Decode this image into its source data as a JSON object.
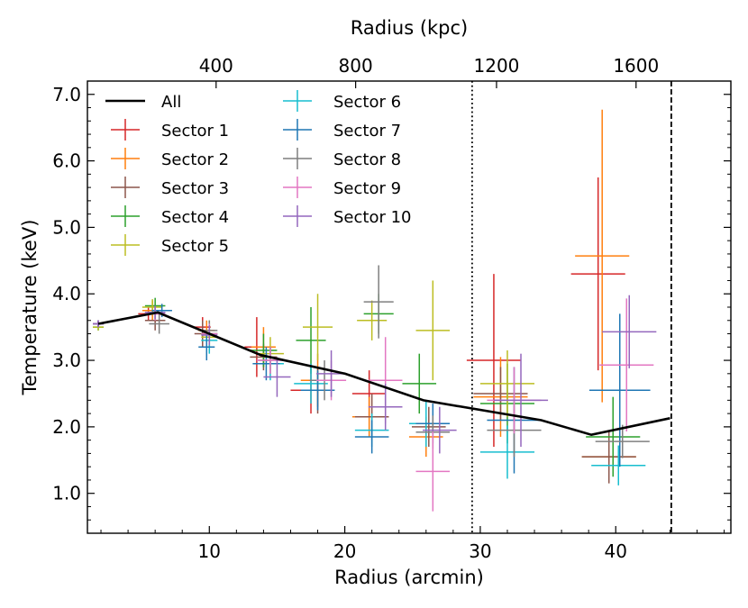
{
  "chart_data": {
    "type": "scatter",
    "title": "",
    "xlabel": "Radius (arcmin)",
    "ylabel": "Temperature (keV)",
    "x2label": "Radius (kpc)",
    "xlim": [
      1,
      48.5
    ],
    "ylim": [
      0.4,
      7.2
    ],
    "xticks": [
      10,
      20,
      30,
      40
    ],
    "yticks": [
      1.0,
      2.0,
      3.0,
      4.0,
      5.0,
      6.0,
      7.0
    ],
    "ytick_labels": [
      "1.0",
      "2.0",
      "3.0",
      "4.0",
      "5.0",
      "6.0",
      "7.0"
    ],
    "x2ticks": [
      {
        "label": "400",
        "arcmin": 10.5
      },
      {
        "label": "800",
        "arcmin": 20.8
      },
      {
        "label": "1200",
        "arcmin": 31.2
      },
      {
        "label": "1600",
        "arcmin": 41.5
      }
    ],
    "vlines": [
      {
        "x": 29.4,
        "style": "dotted",
        "color": "#000000"
      },
      {
        "x": 44.1,
        "style": "dashed",
        "color": "#000000"
      }
    ],
    "grid": false,
    "legend": {
      "position": "top-left",
      "columns": [
        [
          "All",
          "Sector 1",
          "Sector 2",
          "Sector 3",
          "Sector 4",
          "Sector 5"
        ],
        [
          "Sector 6",
          "Sector 7",
          "Sector 8",
          "Sector 9",
          "Sector 10"
        ]
      ]
    },
    "line": {
      "name": "All",
      "color": "#000000",
      "points": [
        [
          1.8,
          3.55
        ],
        [
          6.2,
          3.72
        ],
        [
          13.8,
          3.08
        ],
        [
          20.0,
          2.8
        ],
        [
          25.8,
          2.4
        ],
        [
          34.5,
          2.1
        ],
        [
          38.2,
          1.88
        ],
        [
          44.0,
          2.13
        ]
      ]
    },
    "series": [
      {
        "name": "Sector 1",
        "color": "#d62728",
        "points": [
          [
            1.8,
            3.55,
            0.8,
            0.05
          ],
          [
            5.5,
            3.7,
            1.5,
            0.1
          ],
          [
            9.5,
            3.5,
            1.2,
            0.15
          ],
          [
            13.5,
            3.2,
            1.8,
            0.45
          ],
          [
            17.5,
            2.55,
            3.0,
            0.35
          ],
          [
            21.8,
            2.5,
            2.5,
            0.35
          ],
          [
            31.0,
            3.0,
            4.0,
            1.3
          ],
          [
            38.7,
            4.3,
            4.0,
            1.45
          ]
        ]
      },
      {
        "name": "Sector 2",
        "color": "#ff7f0e",
        "points": [
          [
            1.8,
            3.55,
            0.8,
            0.05
          ],
          [
            5.8,
            3.75,
            1.5,
            0.15
          ],
          [
            9.8,
            3.45,
            1.2,
            0.15
          ],
          [
            14.0,
            3.2,
            1.8,
            0.3
          ],
          [
            18.0,
            2.7,
            2.5,
            0.4
          ],
          [
            21.8,
            2.15,
            2.5,
            0.3
          ],
          [
            26.0,
            1.85,
            2.5,
            0.3
          ],
          [
            31.5,
            2.45,
            4.0,
            0.6
          ],
          [
            39.0,
            4.57,
            4.0,
            2.2
          ],
          [
            39.5,
            1.55,
            4.0,
            0.1
          ]
        ]
      },
      {
        "name": "Sector 3",
        "color": "#8c564b",
        "points": [
          [
            1.8,
            3.55,
            0.8,
            0.05
          ],
          [
            6.0,
            3.6,
            1.5,
            0.15
          ],
          [
            9.5,
            3.4,
            1.2,
            0.2
          ],
          [
            14.0,
            3.05,
            2.0,
            0.2
          ],
          [
            18.0,
            2.55,
            2.5,
            0.35
          ],
          [
            22.0,
            2.15,
            2.5,
            0.35
          ],
          [
            26.2,
            2.0,
            2.5,
            0.3
          ],
          [
            31.5,
            2.5,
            4.0,
            0.4
          ],
          [
            39.5,
            1.55,
            4.0,
            0.4
          ]
        ]
      },
      {
        "name": "Sector 4",
        "color": "#2ca02c",
        "points": [
          [
            1.8,
            3.5,
            0.8,
            0.05
          ],
          [
            6.0,
            3.82,
            1.5,
            0.12
          ],
          [
            10.0,
            3.4,
            1.2,
            0.2
          ],
          [
            14.0,
            3.15,
            2.0,
            0.25
          ],
          [
            17.5,
            3.3,
            2.2,
            0.5
          ],
          [
            22.5,
            3.7,
            2.2,
            0.3
          ],
          [
            25.5,
            2.65,
            2.5,
            0.45
          ],
          [
            32.0,
            2.35,
            4.0,
            0.6
          ],
          [
            39.8,
            1.85,
            4.0,
            0.6
          ]
        ]
      },
      {
        "name": "Sector 5",
        "color": "#bcbd22",
        "points": [
          [
            1.8,
            3.5,
            0.8,
            0.05
          ],
          [
            5.8,
            3.8,
            1.5,
            0.12
          ],
          [
            10.0,
            3.35,
            1.2,
            0.2
          ],
          [
            14.5,
            3.1,
            2.0,
            0.25
          ],
          [
            18.0,
            3.5,
            2.2,
            0.5
          ],
          [
            22.0,
            3.6,
            2.2,
            0.3
          ],
          [
            26.5,
            3.45,
            2.5,
            0.75
          ],
          [
            32.0,
            2.65,
            4.0,
            0.5
          ]
        ]
      },
      {
        "name": "Sector 6",
        "color": "#17becf",
        "points": [
          [
            1.8,
            3.55,
            0.8,
            0.05
          ],
          [
            6.0,
            3.72,
            1.5,
            0.1
          ],
          [
            10.0,
            3.3,
            1.2,
            0.2
          ],
          [
            14.5,
            2.95,
            2.0,
            0.25
          ],
          [
            17.5,
            2.65,
            2.5,
            0.3
          ],
          [
            22.0,
            1.95,
            2.5,
            0.25
          ],
          [
            26.0,
            2.05,
            2.5,
            0.35
          ],
          [
            32.0,
            1.62,
            4.0,
            0.4
          ],
          [
            40.2,
            1.42,
            4.0,
            0.3
          ]
        ]
      },
      {
        "name": "Sector 7",
        "color": "#1f77b4",
        "points": [
          [
            1.8,
            3.55,
            0.8,
            0.05
          ],
          [
            6.5,
            3.75,
            1.5,
            0.1
          ],
          [
            9.8,
            3.2,
            1.2,
            0.2
          ],
          [
            14.2,
            2.95,
            2.0,
            0.25
          ],
          [
            18.0,
            2.55,
            2.5,
            0.3
          ],
          [
            22.0,
            1.85,
            2.5,
            0.25
          ],
          [
            26.5,
            2.05,
            2.5,
            0.3
          ],
          [
            32.5,
            2.1,
            4.0,
            0.8
          ],
          [
            40.3,
            2.55,
            4.5,
            1.15
          ]
        ]
      },
      {
        "name": "Sector 8",
        "color": "#7f7f7f",
        "points": [
          [
            1.8,
            3.55,
            0.8,
            0.05
          ],
          [
            6.3,
            3.55,
            1.5,
            0.15
          ],
          [
            10.0,
            3.45,
            1.2,
            0.15
          ],
          [
            14.5,
            3.0,
            2.0,
            0.2
          ],
          [
            18.5,
            2.7,
            2.2,
            0.3
          ],
          [
            22.5,
            3.88,
            2.2,
            0.55
          ],
          [
            26.5,
            1.92,
            2.5,
            0.25
          ],
          [
            32.5,
            1.95,
            4.0,
            0.4
          ],
          [
            40.5,
            1.78,
            4.0,
            0.25
          ]
        ]
      },
      {
        "name": "Sector 9",
        "color": "#e377c2",
        "points": [
          [
            1.8,
            3.55,
            0.8,
            0.05
          ],
          [
            6.0,
            3.7,
            1.5,
            0.1
          ],
          [
            10.0,
            3.4,
            1.2,
            0.15
          ],
          [
            14.5,
            3.0,
            2.0,
            0.2
          ],
          [
            19.0,
            2.7,
            2.2,
            0.3
          ],
          [
            23.0,
            2.7,
            2.5,
            0.65
          ],
          [
            26.5,
            1.33,
            2.5,
            0.6
          ],
          [
            32.5,
            2.4,
            4.0,
            0.5
          ],
          [
            40.8,
            2.93,
            4.0,
            1.0
          ]
        ]
      },
      {
        "name": "Sector 10",
        "color": "#9467bd",
        "points": [
          [
            1.8,
            3.55,
            0.8,
            0.05
          ],
          [
            6.0,
            3.72,
            1.5,
            0.1
          ],
          [
            10.0,
            3.38,
            1.2,
            0.15
          ],
          [
            15.0,
            2.75,
            2.0,
            0.3
          ],
          [
            19.0,
            2.8,
            2.2,
            0.35
          ],
          [
            23.0,
            2.3,
            2.5,
            0.35
          ],
          [
            27.0,
            1.95,
            2.5,
            0.35
          ],
          [
            33.0,
            2.4,
            4.0,
            0.7
          ],
          [
            41.0,
            3.43,
            4.0,
            0.55
          ]
        ]
      }
    ]
  }
}
